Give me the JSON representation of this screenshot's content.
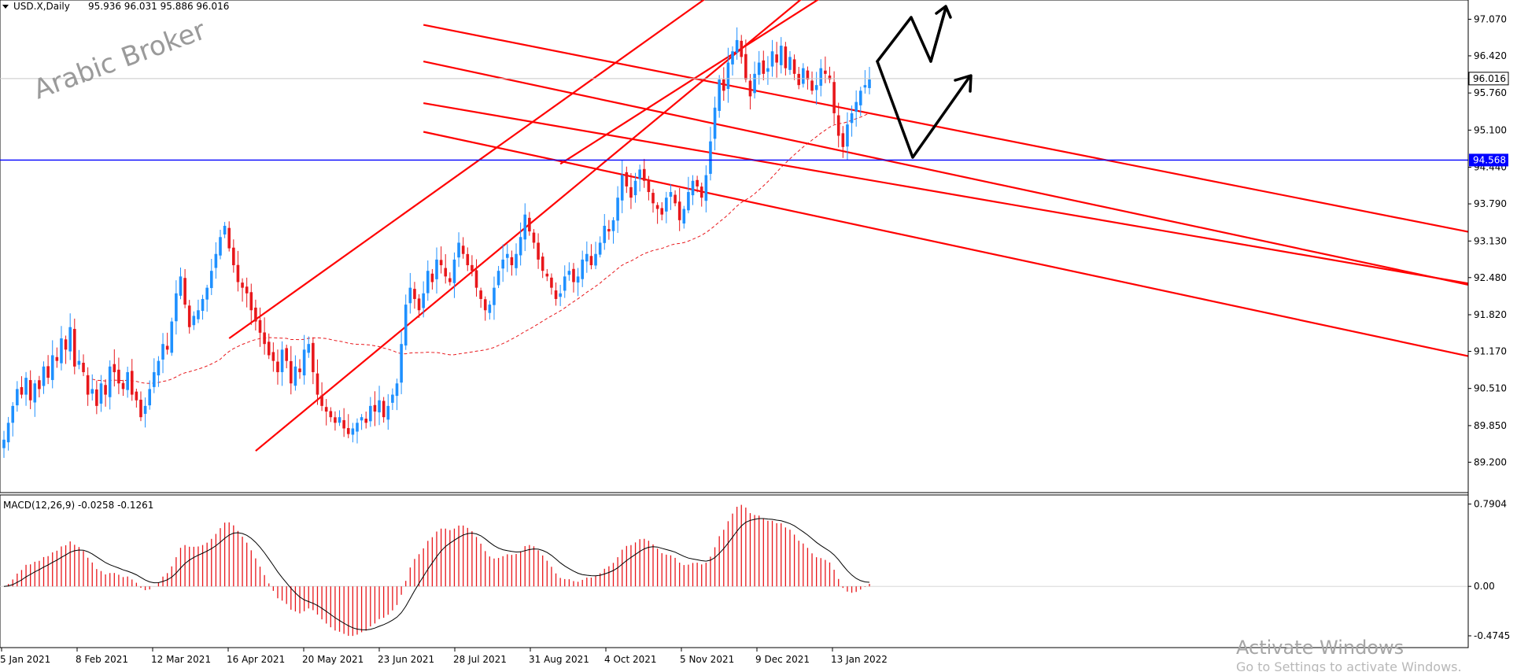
{
  "header": {
    "symbol_label": "USD.X,Daily",
    "ohlc_label": "95.936 96.031 95.886 96.016"
  },
  "watermark": "Arabic Broker",
  "activation": {
    "title": "Activate Windows",
    "subtitle": "Go to Settings to activate Windows."
  },
  "colors": {
    "bull": "#1e90ff",
    "bear": "#e8171b",
    "trendline": "#ff0000",
    "support_line": "#0000ff",
    "ma": "#e8171b",
    "macd_hist": "#e8171b",
    "macd_signal": "#000000",
    "arrows": "#000000",
    "price_tag": "#ffffff",
    "support_tag": "#0000ff"
  },
  "chart_data": {
    "type": "candlestick",
    "price": {
      "ylim": [
        88.8,
        97.3
      ],
      "y_ticks": [
        "97.070",
        "96.420",
        "95.760",
        "95.100",
        "94.440",
        "93.790",
        "93.130",
        "92.480",
        "91.820",
        "91.170",
        "90.510",
        "89.850",
        "89.200"
      ],
      "current_price": "96.016",
      "support_level": "94.568",
      "x_labels": [
        "5 Jan 2021",
        "8 Feb 2021",
        "12 Mar 2021",
        "16 Apr 2021",
        "20 May 2021",
        "23 Jun 2021",
        "28 Jul 2021",
        "31 Aug 2021",
        "4 Oct 2021",
        "5 Nov 2021",
        "9 Dec 2021",
        "13 Jan 2022"
      ],
      "closes": [
        89.6,
        89.9,
        90.2,
        90.5,
        90.4,
        90.7,
        90.3,
        90.6,
        90.5,
        90.9,
        90.7,
        91.1,
        91.0,
        91.4,
        91.2,
        91.6,
        90.9,
        91.0,
        90.8,
        90.4,
        90.5,
        90.2,
        90.6,
        90.4,
        90.9,
        90.8,
        90.6,
        90.5,
        90.8,
        90.4,
        90.3,
        90.0,
        90.2,
        90.5,
        90.8,
        91.0,
        91.3,
        91.2,
        91.7,
        92.2,
        92.5,
        92.0,
        91.6,
        91.8,
        91.9,
        92.1,
        92.3,
        92.6,
        92.9,
        93.2,
        93.4,
        93.0,
        92.7,
        92.4,
        92.3,
        92.2,
        91.9,
        91.7,
        91.5,
        91.3,
        91.1,
        91.0,
        90.8,
        91.2,
        91.0,
        90.6,
        90.9,
        90.8,
        91.2,
        91.3,
        90.8,
        90.4,
        90.2,
        90.1,
        90.0,
        89.9,
        90.0,
        89.8,
        89.7,
        89.8,
        89.9,
        90.0,
        89.9,
        90.2,
        90.1,
        90.3,
        90.0,
        90.2,
        90.4,
        90.6,
        91.3,
        92.0,
        92.3,
        92.1,
        91.9,
        92.2,
        92.6,
        92.4,
        92.8,
        92.7,
        92.5,
        92.4,
        92.8,
        93.1,
        92.9,
        92.7,
        92.6,
        92.3,
        92.1,
        91.9,
        92.0,
        92.3,
        92.6,
        92.8,
        92.9,
        92.7,
        92.9,
        93.2,
        93.6,
        93.3,
        93.1,
        92.8,
        92.6,
        92.5,
        92.3,
        92.1,
        92.2,
        92.5,
        92.6,
        92.4,
        92.5,
        92.8,
        92.9,
        92.7,
        92.9,
        93.1,
        93.4,
        93.3,
        93.5,
        93.9,
        94.3,
        94.1,
        93.9,
        94.2,
        94.4,
        94.2,
        94.0,
        93.8,
        93.7,
        93.6,
        93.9,
        94.0,
        93.8,
        93.5,
        93.7,
        94.0,
        94.2,
        94.1,
        93.9,
        94.3,
        94.9,
        95.5,
        96.0,
        95.8,
        96.3,
        96.5,
        96.7,
        96.4,
        96.0,
        95.7,
        96.1,
        96.3,
        96.1,
        96.2,
        96.5,
        96.3,
        96.6,
        96.2,
        96.4,
        96.1,
        95.9,
        96.2,
        96.0,
        95.8,
        95.9,
        96.2,
        96.1,
        96.0,
        95.4,
        95.0,
        94.8,
        95.2,
        95.4,
        95.6,
        95.8,
        95.9,
        96.0
      ],
      "ma_period": 50
    },
    "macd": {
      "label": "MACD(12,26,9) -0.0258 -0.1261",
      "ylim": [
        -0.55,
        0.84
      ],
      "y_ticks": [
        "0.7904",
        "0.00",
        "-0.4745"
      ]
    }
  }
}
